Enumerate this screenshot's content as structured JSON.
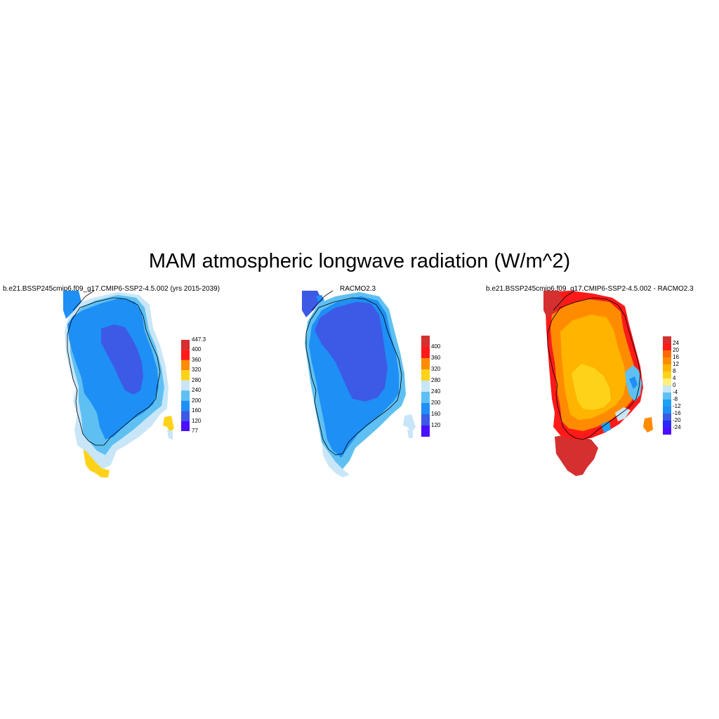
{
  "title": "MAM atmospheric longwave radiation (W/m^2)",
  "panels": [
    {
      "title": "b.e21.BSSP245cmip6.f09_g17.CMIP6-SSP2-4.5.002 (yrs 2015-2039)",
      "colorbar": {
        "labels": [
          "447.3",
          "400",
          "360",
          "320",
          "280",
          "240",
          "200",
          "160",
          "120",
          "77"
        ],
        "colors": [
          "#d62f2f",
          "#ff1a1a",
          "#ff8c00",
          "#ffd21a",
          "#c8e6f8",
          "#5ec0f2",
          "#1e8ff5",
          "#3c5ae6",
          "#4b0fff"
        ]
      },
      "scene": "model"
    },
    {
      "title": "RACMO2.3",
      "colorbar": {
        "labels": [
          "400",
          "360",
          "320",
          "280",
          "240",
          "200",
          "160",
          "120"
        ],
        "colors": [
          "#d62f2f",
          "#ff1a1a",
          "#ff8c00",
          "#ffd21a",
          "#c8e6f8",
          "#5ec0f2",
          "#1e8ff5",
          "#3c5ae6",
          "#4b0fff"
        ]
      },
      "scene": "obs"
    },
    {
      "title": "b.e21.BSSP245cmip6.f09_g17.CMIP6-SSP2-4.5.002 - RACMO2.3",
      "colorbar": {
        "labels": [
          "24",
          "20",
          "16",
          "12",
          "8",
          "4",
          "0",
          "-4",
          "-8",
          "-12",
          "-16",
          "-20",
          "-24"
        ],
        "colors": [
          "#d62f2f",
          "#ff1a1a",
          "#ff6a00",
          "#ff8c00",
          "#ffb400",
          "#ffd21a",
          "#fff07a",
          "#c8e6f8",
          "#5ec0f2",
          "#1ea0f5",
          "#1e8ff5",
          "#3c5ae6",
          "#2828ff",
          "#4b0fff"
        ]
      }
    }
  ]
}
